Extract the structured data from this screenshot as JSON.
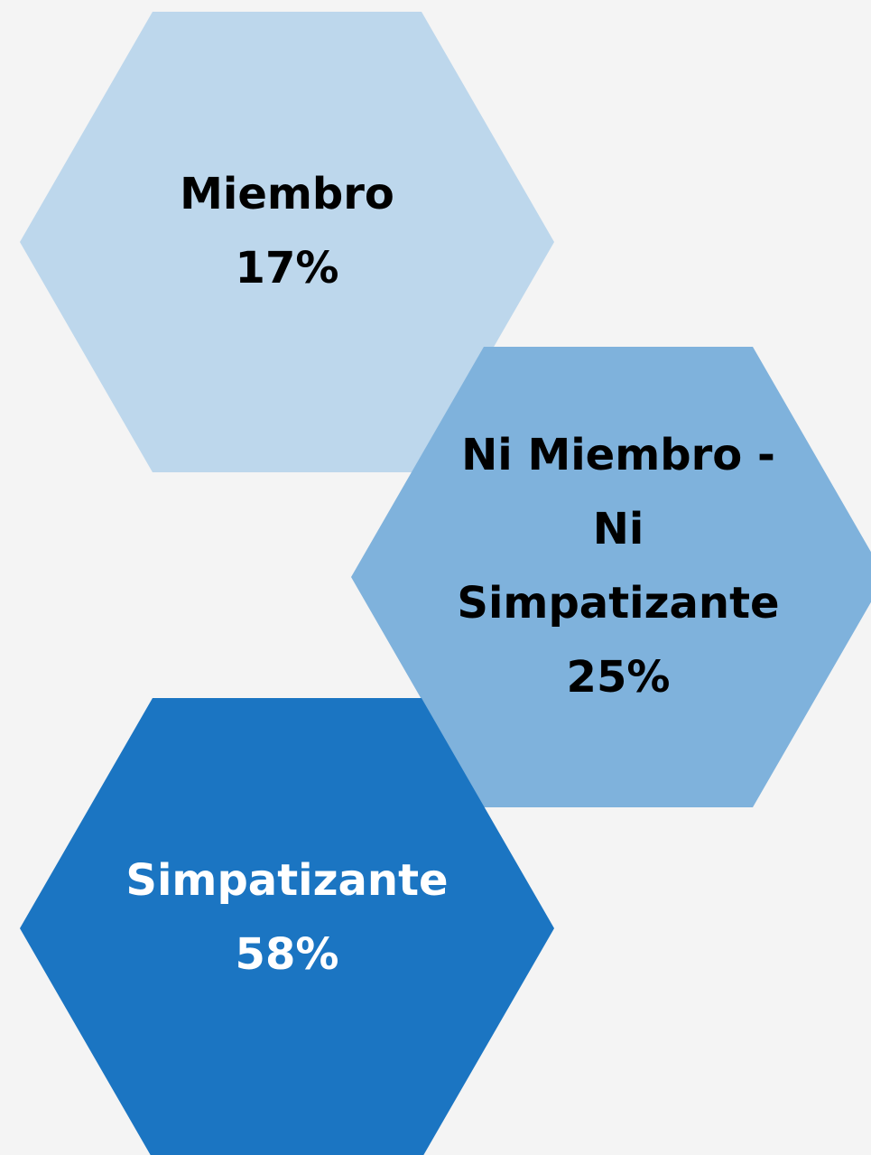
{
  "chart_data": {
    "type": "hexagon",
    "categories": [
      "Miembro",
      "Ni Miembro - Ni Simpatizante",
      "Simpatizante"
    ],
    "values": [
      17,
      25,
      58
    ],
    "value_labels": [
      "17%",
      "25%",
      "58%"
    ],
    "colors": [
      "#bdd7ec",
      "#7fb2dc",
      "#1b75c2"
    ],
    "label_colors": [
      "#000000",
      "#000000",
      "#ffffff"
    ]
  }
}
